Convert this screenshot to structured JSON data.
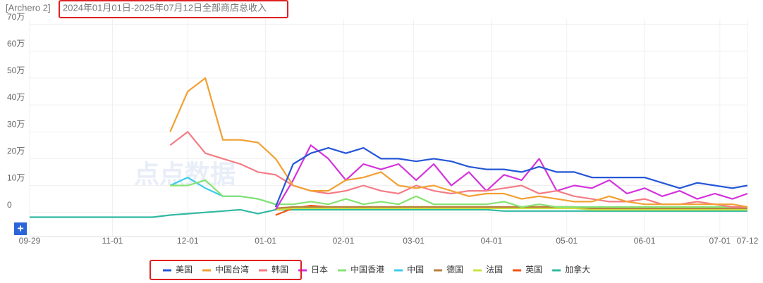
{
  "header": {
    "app": "[Archero 2]",
    "title": "2024年01月01日-2025年07月12日全部商店总收入"
  },
  "watermark": "点点数据",
  "chart_data": {
    "type": "line",
    "xlim": [
      0,
      286
    ],
    "xticks": [
      {
        "value": 0,
        "label": "09-29"
      },
      {
        "value": 33,
        "label": "11-01"
      },
      {
        "value": 63,
        "label": "12-01"
      },
      {
        "value": 94,
        "label": "01-01"
      },
      {
        "value": 125,
        "label": "02-01"
      },
      {
        "value": 153,
        "label": "03-01"
      },
      {
        "value": 184,
        "label": "04-01"
      },
      {
        "value": 214,
        "label": "05-01"
      },
      {
        "value": 245,
        "label": "06-01"
      },
      {
        "value": 275,
        "label": "07-01"
      },
      {
        "value": 286,
        "label": "07-12"
      }
    ],
    "ylim": [
      -9,
      72
    ],
    "yticks": [
      0,
      {
        "value": 10,
        "label": "10万"
      },
      {
        "value": 20,
        "label": "20万"
      },
      {
        "value": 30,
        "label": "30万"
      },
      {
        "value": 40,
        "label": "40万"
      },
      {
        "value": 50,
        "label": "50万"
      },
      {
        "value": 60,
        "label": "60万"
      },
      {
        "value": 70,
        "label": "70万"
      }
    ],
    "grid": true,
    "x": [
      0,
      7,
      14,
      21,
      28,
      35,
      42,
      49,
      56,
      63,
      70,
      77,
      84,
      91,
      98,
      105,
      112,
      119,
      126,
      133,
      140,
      147,
      154,
      161,
      168,
      175,
      182,
      189,
      196,
      203,
      210,
      217,
      224,
      231,
      238,
      245,
      252,
      259,
      266,
      273,
      280,
      286
    ],
    "series": [
      {
        "name": "美国",
        "color": "#2457d6",
        "values": [
          null,
          null,
          null,
          null,
          null,
          null,
          null,
          null,
          null,
          null,
          null,
          null,
          null,
          null,
          2,
          18,
          22,
          24,
          22,
          24,
          20,
          20,
          19,
          20,
          19,
          17,
          16,
          16,
          15,
          17,
          15,
          15,
          13,
          13,
          13,
          13,
          11,
          9,
          11,
          10,
          9,
          10
        ]
      },
      {
        "name": "中国台湾",
        "color": "#f2a033",
        "values": [
          null,
          null,
          null,
          null,
          null,
          null,
          null,
          null,
          30,
          45,
          50,
          27,
          27,
          26,
          20,
          10,
          8,
          8,
          12,
          13,
          15,
          10,
          9,
          10,
          8,
          6,
          7,
          7,
          5,
          6,
          5,
          4,
          4,
          6,
          4,
          3,
          3,
          3,
          3,
          3,
          3,
          2
        ]
      },
      {
        "name": "韩国",
        "color": "#f47c84",
        "values": [
          null,
          null,
          null,
          null,
          null,
          null,
          null,
          null,
          25,
          30,
          22,
          20,
          18,
          15,
          14,
          10,
          8,
          7,
          8,
          10,
          8,
          7,
          10,
          8,
          7,
          8,
          8,
          9,
          10,
          7,
          8,
          6,
          5,
          4,
          4,
          5,
          3,
          3,
          4,
          3,
          2,
          2
        ]
      },
      {
        "name": "日本",
        "color": "#d433dc",
        "values": [
          null,
          null,
          null,
          null,
          null,
          null,
          null,
          null,
          null,
          null,
          null,
          null,
          null,
          null,
          1,
          12,
          25,
          20,
          12,
          18,
          16,
          18,
          12,
          18,
          10,
          15,
          8,
          14,
          12,
          20,
          8,
          10,
          9,
          12,
          7,
          9,
          6,
          8,
          5,
          7,
          5,
          7
        ]
      },
      {
        "name": "中国香港",
        "color": "#86e273",
        "values": [
          null,
          null,
          null,
          null,
          null,
          null,
          null,
          null,
          10,
          10,
          12,
          6,
          6,
          5,
          3,
          3,
          4,
          3,
          5,
          3,
          4,
          3,
          6,
          3,
          3,
          3,
          3,
          4,
          2,
          3,
          2,
          2,
          2,
          2,
          2,
          2,
          2,
          2,
          2,
          2,
          2,
          2
        ]
      },
      {
        "name": "中国",
        "color": "#3ccbeb",
        "values": [
          null,
          null,
          null,
          null,
          null,
          null,
          null,
          null,
          10,
          13,
          9,
          6,
          6,
          5,
          3,
          null,
          null,
          null,
          null,
          null,
          null,
          null,
          null,
          null,
          null,
          null,
          null,
          null,
          null,
          null,
          null,
          null,
          null,
          null,
          null,
          null,
          null,
          null,
          null,
          null,
          null,
          null
        ]
      },
      {
        "name": "德国",
        "color": "#b8813f",
        "values": [
          null,
          null,
          null,
          null,
          null,
          null,
          null,
          null,
          null,
          null,
          null,
          null,
          null,
          null,
          1.5,
          2,
          2,
          2,
          2,
          2,
          2,
          2,
          2,
          2,
          2,
          2,
          2,
          2,
          2,
          2,
          2,
          2,
          1.5,
          1.5,
          1.5,
          1.5,
          1.5,
          1.5,
          1.5,
          1.5,
          1.5,
          1.5
        ]
      },
      {
        "name": "法国",
        "color": "#cbe33f",
        "values": [
          null,
          null,
          null,
          null,
          null,
          null,
          null,
          null,
          null,
          null,
          null,
          null,
          null,
          null,
          1,
          1.5,
          1.5,
          1.5,
          1.5,
          1.5,
          1.5,
          1.5,
          1.5,
          1.5,
          1.5,
          1.5,
          1.5,
          1.5,
          1.5,
          1.5,
          1.5,
          1.5,
          1,
          1,
          1,
          1,
          1,
          1,
          1,
          1,
          1,
          1
        ]
      },
      {
        "name": "英国",
        "color": "#f25412",
        "values": [
          null,
          null,
          null,
          null,
          null,
          null,
          null,
          null,
          null,
          null,
          null,
          null,
          null,
          null,
          -1,
          1.5,
          2.5,
          2,
          2,
          2,
          2,
          2,
          2,
          2,
          2,
          2,
          2,
          2,
          2,
          2,
          2,
          2,
          1.5,
          1.5,
          1.5,
          1.5,
          1.5,
          1.5,
          1.5,
          1.5,
          1.5,
          1.5
        ]
      },
      {
        "name": "加拿大",
        "color": "#31b9a1",
        "values": [
          -1.8,
          -1.8,
          -1.8,
          -1.8,
          -1.8,
          -1.8,
          -1.8,
          -1.8,
          -1,
          -0.5,
          0,
          0.5,
          1,
          -0.5,
          1,
          1,
          1,
          1,
          1,
          1,
          1,
          1,
          1,
          1,
          1,
          1,
          1,
          0.5,
          0.5,
          0.5,
          0.5,
          0.5,
          0.5,
          0.5,
          0.5,
          0.5,
          0.5,
          0.5,
          0.5,
          0.5,
          0.5,
          0.5
        ]
      }
    ]
  }
}
